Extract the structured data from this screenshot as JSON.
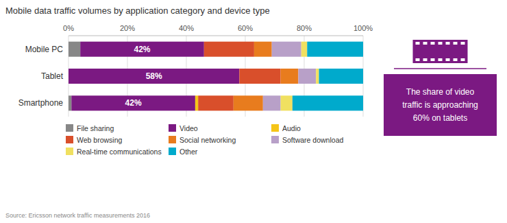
{
  "chart_data": {
    "type": "bar",
    "orientation": "horizontal",
    "stacked": true,
    "title": "Mobile data traffic volumes by application category and device type",
    "categories": [
      "Mobile PC",
      "Tablet",
      "Smartphone"
    ],
    "series": [
      {
        "name": "File sharing",
        "color": "#878787",
        "values": [
          0.04,
          0.0,
          0.01
        ]
      },
      {
        "name": "Video",
        "color": "#7B1982",
        "values": [
          0.42,
          0.58,
          0.42
        ],
        "data_labels": true,
        "value_labels": [
          "42%",
          "58%",
          "42%"
        ]
      },
      {
        "name": "Audio",
        "color": "#F5C518",
        "values": [
          0.0,
          0.0,
          0.01
        ]
      },
      {
        "name": "Web browsing",
        "color": "#D94F2B",
        "values": [
          0.17,
          0.14,
          0.12
        ]
      },
      {
        "name": "Social networking",
        "color": "#E87C1E",
        "values": [
          0.06,
          0.06,
          0.1
        ]
      },
      {
        "name": "Software download",
        "color": "#B8A0C8",
        "values": [
          0.1,
          0.06,
          0.06
        ]
      },
      {
        "name": "Real-time communications",
        "color": "#F0E060",
        "values": [
          0.02,
          0.01,
          0.04
        ]
      },
      {
        "name": "Other",
        "color": "#00AACC",
        "values": [
          0.19,
          0.15,
          0.24
        ]
      }
    ],
    "xlim": [
      0,
      1
    ],
    "xticks": [
      {
        "value": 0,
        "label": "0%"
      },
      {
        "value": 0.2,
        "label": "20%"
      },
      {
        "value": 0.4,
        "label": "40%"
      },
      {
        "value": 0.6,
        "label": "60%"
      },
      {
        "value": 0.8,
        "label": "80%"
      },
      {
        "value": 1.0,
        "label": "100%"
      }
    ],
    "grid": true,
    "legend": "bottom",
    "annotation": "The share of video\ntraffic is approaching\n60% on tablets",
    "source": "Source: Ericsson network traffic measurements 2016"
  }
}
